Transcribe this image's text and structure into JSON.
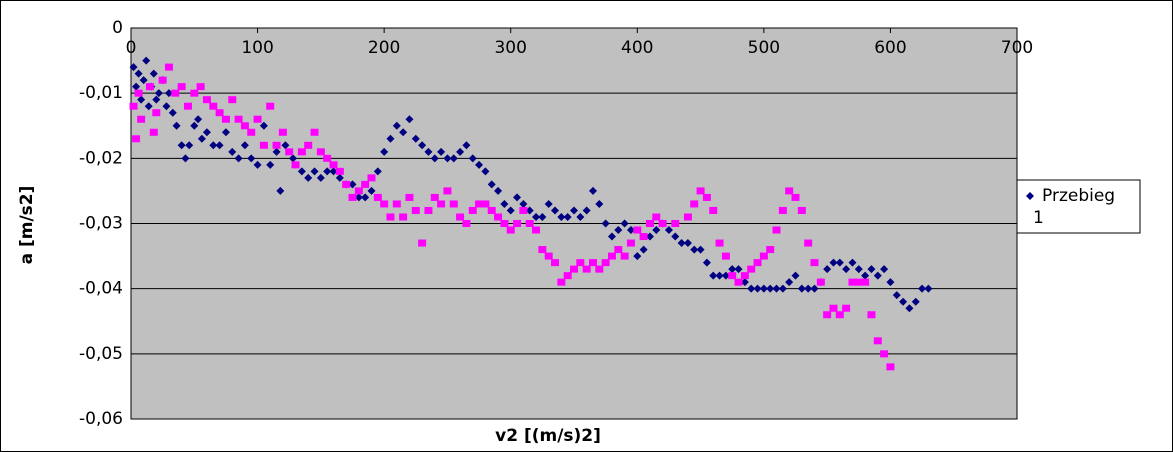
{
  "chart_data": {
    "type": "scatter",
    "x_label": "v2 [(m/s)2]",
    "y_label": "a [m/s2]",
    "xlim": [
      0,
      700
    ],
    "xticks": [
      0,
      100,
      200,
      300,
      400,
      500,
      600,
      700
    ],
    "ylim": [
      -0.06,
      0
    ],
    "yticks": [
      {
        "value": -0.06,
        "label": "-0,06"
      },
      {
        "value": -0.05,
        "label": "-0,05"
      },
      {
        "value": -0.04,
        "label": "-0,04"
      },
      {
        "value": -0.03,
        "label": "-0,03"
      },
      {
        "value": -0.02,
        "label": "-0,02"
      },
      {
        "value": -0.01,
        "label": "-0,01"
      },
      0
    ],
    "grid": true,
    "legend": "right",
    "series": [
      {
        "name": "Przebieg 1",
        "color": "#000080",
        "marker": "diamond",
        "x": [
          2,
          4,
          6,
          8,
          10,
          12,
          14,
          16,
          18,
          20,
          22,
          25,
          28,
          30,
          33,
          36,
          40,
          43,
          46,
          50,
          53,
          56,
          60,
          65,
          70,
          75,
          80,
          85,
          90,
          95,
          100,
          105,
          110,
          115,
          118,
          122,
          128,
          135,
          140,
          145,
          150,
          155,
          160,
          165,
          170,
          175,
          180,
          185,
          190,
          195,
          200,
          205,
          210,
          215,
          220,
          225,
          230,
          235,
          240,
          245,
          250,
          255,
          260,
          265,
          270,
          275,
          280,
          285,
          290,
          295,
          300,
          305,
          310,
          315,
          320,
          325,
          330,
          335,
          340,
          345,
          350,
          355,
          360,
          365,
          370,
          375,
          380,
          385,
          390,
          395,
          400,
          405,
          410,
          415,
          420,
          425,
          430,
          435,
          440,
          445,
          450,
          455,
          460,
          465,
          470,
          475,
          480,
          485,
          490,
          495,
          500,
          505,
          510,
          515,
          520,
          525,
          530,
          535,
          540,
          545,
          550,
          555,
          560,
          565,
          570,
          575,
          580,
          585,
          590,
          595,
          600,
          605,
          610,
          615,
          620,
          625,
          630
        ],
        "values": [
          -0.006,
          -0.009,
          -0.007,
          -0.011,
          -0.008,
          -0.005,
          -0.012,
          -0.009,
          -0.007,
          -0.011,
          -0.01,
          -0.008,
          -0.012,
          -0.01,
          -0.013,
          -0.015,
          -0.018,
          -0.02,
          -0.018,
          -0.015,
          -0.014,
          -0.017,
          -0.016,
          -0.018,
          -0.018,
          -0.016,
          -0.019,
          -0.02,
          -0.018,
          -0.02,
          -0.021,
          -0.015,
          -0.021,
          -0.019,
          -0.025,
          -0.018,
          -0.02,
          -0.022,
          -0.023,
          -0.022,
          -0.023,
          -0.022,
          -0.022,
          -0.023,
          -0.024,
          -0.024,
          -0.026,
          -0.026,
          -0.025,
          -0.022,
          -0.019,
          -0.017,
          -0.015,
          -0.016,
          -0.014,
          -0.017,
          -0.018,
          -0.019,
          -0.02,
          -0.019,
          -0.02,
          -0.02,
          -0.019,
          -0.018,
          -0.02,
          -0.021,
          -0.022,
          -0.024,
          -0.025,
          -0.027,
          -0.028,
          -0.026,
          -0.027,
          -0.028,
          -0.029,
          -0.029,
          -0.027,
          -0.028,
          -0.029,
          -0.029,
          -0.028,
          -0.029,
          -0.028,
          -0.025,
          -0.027,
          -0.03,
          -0.032,
          -0.031,
          -0.03,
          -0.031,
          -0.035,
          -0.034,
          -0.032,
          -0.031,
          -0.03,
          -0.031,
          -0.032,
          -0.033,
          -0.033,
          -0.034,
          -0.034,
          -0.036,
          -0.038,
          -0.038,
          -0.038,
          -0.037,
          -0.037,
          -0.039,
          -0.04,
          -0.04,
          -0.04,
          -0.04,
          -0.04,
          -0.04,
          -0.039,
          -0.038,
          -0.04,
          -0.04,
          -0.04,
          -0.039,
          -0.037,
          -0.036,
          -0.036,
          -0.037,
          -0.036,
          -0.037,
          -0.038,
          -0.037,
          -0.038,
          -0.037,
          -0.039,
          -0.041,
          -0.042,
          -0.043,
          -0.042,
          -0.04,
          -0.04
        ]
      },
      {
        "color": "#ff00ff",
        "marker": "square",
        "x": [
          2,
          4,
          6,
          8,
          15,
          18,
          20,
          25,
          30,
          35,
          40,
          45,
          50,
          55,
          60,
          65,
          70,
          75,
          80,
          85,
          90,
          95,
          100,
          105,
          110,
          115,
          120,
          125,
          130,
          135,
          140,
          145,
          150,
          155,
          160,
          165,
          170,
          175,
          180,
          185,
          190,
          195,
          200,
          205,
          210,
          215,
          220,
          225,
          230,
          235,
          240,
          245,
          250,
          255,
          260,
          265,
          270,
          275,
          280,
          285,
          290,
          295,
          300,
          305,
          310,
          315,
          320,
          325,
          330,
          335,
          340,
          345,
          350,
          355,
          360,
          365,
          370,
          375,
          380,
          385,
          390,
          395,
          400,
          405,
          410,
          415,
          420,
          430,
          440,
          445,
          450,
          455,
          460,
          465,
          470,
          475,
          480,
          485,
          490,
          495,
          500,
          505,
          510,
          515,
          520,
          525,
          530,
          535,
          540,
          545,
          550,
          555,
          560,
          565,
          570,
          575,
          580,
          585,
          590,
          595,
          600
        ],
        "values": [
          -0.012,
          -0.017,
          -0.01,
          -0.014,
          -0.009,
          -0.016,
          -0.013,
          -0.008,
          -0.006,
          -0.01,
          -0.009,
          -0.012,
          -0.01,
          -0.009,
          -0.011,
          -0.012,
          -0.013,
          -0.014,
          -0.011,
          -0.014,
          -0.015,
          -0.016,
          -0.014,
          -0.018,
          -0.012,
          -0.018,
          -0.016,
          -0.019,
          -0.021,
          -0.019,
          -0.018,
          -0.016,
          -0.019,
          -0.02,
          -0.021,
          -0.022,
          -0.024,
          -0.026,
          -0.025,
          -0.024,
          -0.023,
          -0.026,
          -0.027,
          -0.029,
          -0.027,
          -0.029,
          -0.026,
          -0.028,
          -0.033,
          -0.028,
          -0.026,
          -0.027,
          -0.025,
          -0.027,
          -0.029,
          -0.03,
          -0.028,
          -0.027,
          -0.027,
          -0.028,
          -0.029,
          -0.03,
          -0.031,
          -0.03,
          -0.028,
          -0.03,
          -0.031,
          -0.034,
          -0.035,
          -0.036,
          -0.039,
          -0.038,
          -0.037,
          -0.036,
          -0.037,
          -0.036,
          -0.037,
          -0.036,
          -0.035,
          -0.034,
          -0.035,
          -0.033,
          -0.031,
          -0.032,
          -0.03,
          -0.029,
          -0.03,
          -0.03,
          -0.029,
          -0.027,
          -0.025,
          -0.026,
          -0.028,
          -0.033,
          -0.035,
          -0.038,
          -0.039,
          -0.038,
          -0.037,
          -0.036,
          -0.035,
          -0.034,
          -0.031,
          -0.028,
          -0.025,
          -0.026,
          -0.028,
          -0.033,
          -0.036,
          -0.039,
          -0.044,
          -0.043,
          -0.044,
          -0.043,
          -0.039,
          -0.039,
          -0.039,
          -0.044,
          -0.048,
          -0.05,
          -0.052
        ]
      }
    ]
  }
}
